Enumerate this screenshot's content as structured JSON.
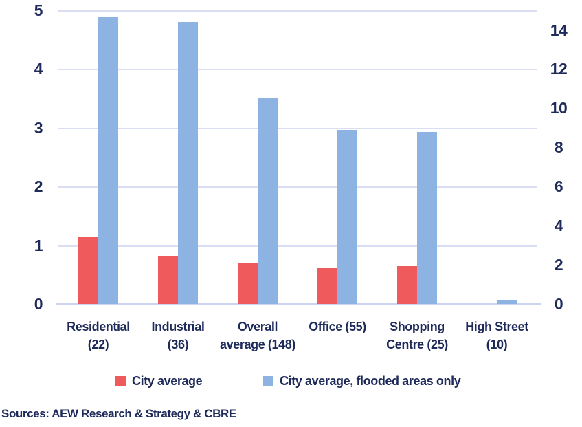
{
  "chart_data": {
    "type": "bar",
    "title": "",
    "categories": [
      {
        "label": "Residential (22)",
        "lines": [
          "Residential",
          "(22)"
        ]
      },
      {
        "label": "Industrial (36)",
        "lines": [
          "Industrial",
          "(36)"
        ]
      },
      {
        "label": "Overall average (148)",
        "lines": [
          "Overall",
          "average (148)"
        ]
      },
      {
        "label": "Office (55)",
        "lines": [
          "Office (55)",
          ""
        ]
      },
      {
        "label": "Shopping Centre (25)",
        "lines": [
          "Shopping",
          "Centre (25)"
        ]
      },
      {
        "label": "High Street (10)",
        "lines": [
          "High Street",
          "(10)"
        ]
      }
    ],
    "series": [
      {
        "name": "City average",
        "axis": "left",
        "color": "#EF5A5C",
        "values": [
          1.14,
          0.81,
          0.69,
          0.61,
          0.64,
          0
        ]
      },
      {
        "name": "City average, flooded areas only",
        "axis": "right",
        "color": "#8DB3E2",
        "values": [
          14.7,
          14.4,
          10.5,
          8.9,
          8.8,
          0.2
        ]
      }
    ],
    "axes": {
      "left": {
        "min": 0,
        "max": 5,
        "ticks": [
          "5",
          "4",
          "3",
          "2",
          "1",
          "0"
        ]
      },
      "right": {
        "min": 0,
        "max": 15,
        "ticks": [
          "14",
          "12",
          "10",
          "8",
          "6",
          "4",
          "2",
          "0"
        ]
      }
    },
    "grid": true,
    "legend_position": "bottom"
  },
  "legend": {
    "items": [
      {
        "label": "City average",
        "color": "#EF5A5C"
      },
      {
        "label": "City average, flooded areas only",
        "color": "#8DB3E2"
      }
    ]
  },
  "source": "Sources: AEW Research & Strategy & CBRE",
  "colors": {
    "bar_red": "#EF5A5C",
    "bar_blue": "#8DB3E2",
    "text_navy": "#1E2A5A",
    "gridline": "#DADEF2",
    "axis_line": "#CBD3EE",
    "background": "#FFFFFF"
  }
}
